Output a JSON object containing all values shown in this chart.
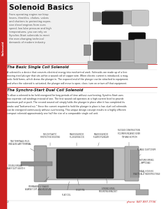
{
  "title": "Solenoid Basics",
  "sidebar_text": "Solenoid",
  "sidebar_color": "#cc2222",
  "bg_color": "#ffffff",
  "intro_text": "From operating engine run/stop\nlevers, throttles, chokes, valves\nand shutters to protecting expen-\nsive diesel engines from over-\nspeed, low lube pressure and high\ntemperatures, you can rely on\nSynchro-Start solenoids to meet\nthe ever-changing technical\ndemands of modern industry.",
  "section1_title": "The Basic Single Coil Solenoid",
  "section1_text": "A solenoid is a device that converts electrical energy into mechanical work. Solenoids are made up of a free\nmoving steel plunger that sits within a wound coil of copper wire. When electric current is introduced, a mag-\nnetic field forms, which draws the plunger in. The exposed end of the plunger can be attached to equipment,\nand when the solenoid is activated, the plunger will move to open, close, turn on or turn off that equipment.",
  "section2_title": "The Synchro-Start Dual Coil Solenoid",
  "section2_text": "To allow a solenoid to be held energized for long periods of time without overheating, Synchro-Start uses\ntwo separate coil windings instead of one. The first wound coil operates at a high current level to provide\nmaximum pull or push. The second wound coil simply holds the plunger in place after it has completed its\nstroke and \"bottomed out.\" Since the current required to hold the plunger in place is low, dual coil solenoids\ncan be energized continuously without overheating. This unique design concept results in a highly efficient\ncompact solenoid approximately one half the size of a comparable single coil unit.",
  "page_number": "2",
  "phone": "phone: 847-897-7736",
  "red_line_color": "#cc2222",
  "body_text_color": "#444444"
}
